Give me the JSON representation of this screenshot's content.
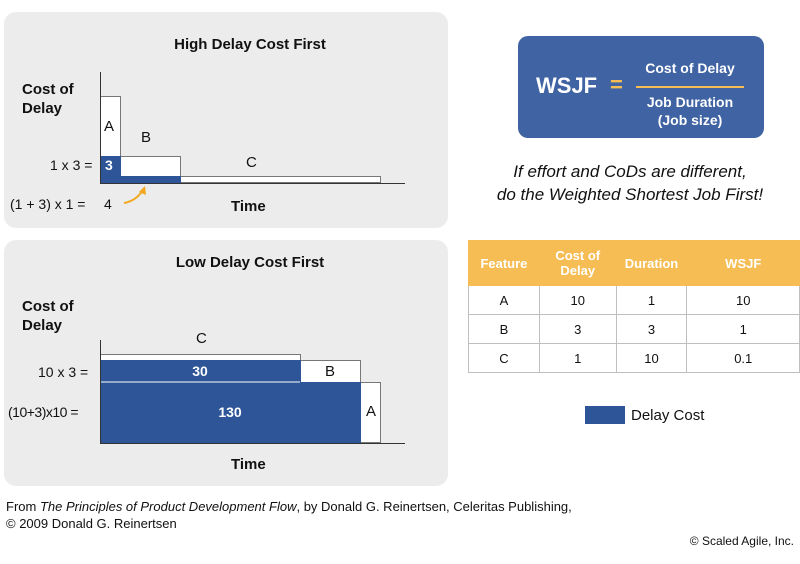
{
  "top_panel": {
    "title": "High Delay Cost First",
    "ylabel": "Cost of Delay",
    "xlabel": "Time",
    "block_labels": {
      "a": "A",
      "b": "B",
      "c": "C"
    },
    "delay_value": "3",
    "eq1": "1 x 3 =",
    "eq2": "(1 + 3) x 1 =",
    "eq2_value": "4"
  },
  "bottom_panel": {
    "title": "Low Delay Cost First",
    "ylabel": "Cost of Delay",
    "xlabel": "Time",
    "block_labels": {
      "a": "A",
      "b": "B",
      "c": "C"
    },
    "bar1_value": "30",
    "bar2_value": "130",
    "eq1": "10 x 3 =",
    "eq2": "(10+3)x10 ="
  },
  "formula": {
    "label": "WSJF",
    "equals": "=",
    "numerator": "Cost of Delay",
    "denominator_line1": "Job Duration",
    "denominator_line2": "(Job size)"
  },
  "caption": {
    "line1": "If effort and CoDs are different,",
    "line2": "do the Weighted Shortest Job First!"
  },
  "table": {
    "headers": [
      "Feature",
      "Cost of Delay",
      "Duration",
      "WSJF"
    ],
    "rows": [
      [
        "A",
        "10",
        "1",
        "10"
      ],
      [
        "B",
        "3",
        "3",
        "1"
      ],
      [
        "C",
        "1",
        "10",
        "0.1"
      ]
    ]
  },
  "legend": {
    "label": "Delay Cost"
  },
  "colors": {
    "delay_cost": "#2d5597",
    "accent_orange": "#f6bd55",
    "formula_bg": "#3f63a3"
  },
  "footer": {
    "prefix": "From ",
    "book_title": "The Principles of Product Development Flow",
    "suffix": ", by Donald G. Reinertsen, Celeritas Publishing,",
    "line2": "© 2009 Donald G. Reinertsen",
    "copyright": "© Scaled Agile, Inc."
  }
}
